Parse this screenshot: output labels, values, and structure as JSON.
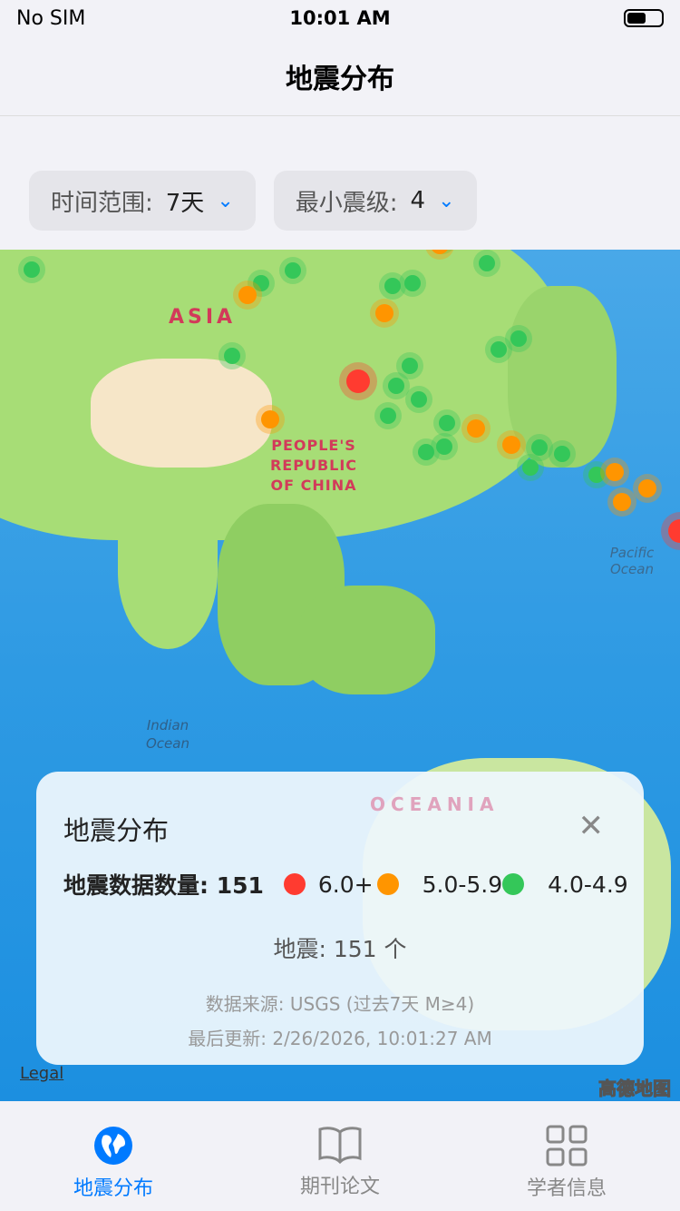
{
  "status": {
    "carrier": "No SIM",
    "time": "10:01 AM"
  },
  "nav": {
    "title": "地震分布"
  },
  "filters": [
    {
      "label": "时间范围:",
      "value": "7天"
    },
    {
      "label": "最小震级:",
      "value": "4"
    }
  ],
  "map": {
    "labels": {
      "asia": "ASIA",
      "china": "PEOPLE'S REPUBLIC OF CHINA",
      "pacific": "Pacific Ocean",
      "indian": "Indian Ocean",
      "oceania": "OCEANIA"
    },
    "legal": "Legal",
    "provider": "高德地图"
  },
  "colors": {
    "accent": "#007aff",
    "m6": "#ff3b30",
    "m5": "#ff9500",
    "m4": "#34c759"
  },
  "card": {
    "title": "地震分布",
    "count_label": "地震数据数量: 151",
    "legend": [
      {
        "label": "6.0+",
        "color": "#ff3b30"
      },
      {
        "label": "5.0-5.9",
        "color": "#ff9500"
      },
      {
        "label": "4.0-4.9",
        "color": "#34c759"
      }
    ],
    "count_text": "地震: 151 个",
    "source": "数据来源: USGS (过去7天 M≥4)",
    "updated": "最后更新: 2/26/2026, 10:01:27 AM"
  },
  "tabs": [
    {
      "label": "地震分布",
      "icon": "globe-icon",
      "active": true
    },
    {
      "label": "期刊论文",
      "icon": "book-icon"
    },
    {
      "label": "学者信息",
      "icon": "grid-icon"
    }
  ]
}
